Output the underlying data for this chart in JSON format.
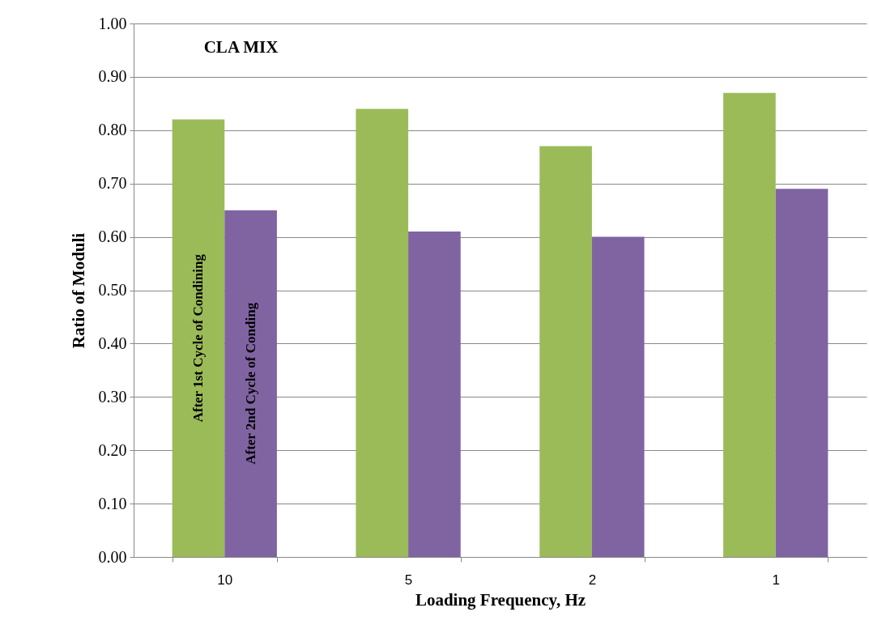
{
  "chart_data": {
    "type": "bar",
    "title": "CLA MIX",
    "xlabel": "Loading Frequency, Hz",
    "ylabel": "Ratio of Moduli",
    "categories": [
      "10",
      "5",
      "2",
      "1"
    ],
    "series": [
      {
        "name": "After 1st Cycle of Condining",
        "color": "#9bbb59",
        "values": [
          0.82,
          0.84,
          0.77,
          0.87
        ]
      },
      {
        "name": "After  2nd  Cycle of Conding",
        "color": "#8064a2",
        "values": [
          0.65,
          0.61,
          0.6,
          0.69
        ]
      }
    ],
    "ylim": [
      0,
      1
    ],
    "yticks": [
      {
        "value": 0,
        "label": "0.00"
      },
      {
        "value": 0.1,
        "label": "0.10"
      },
      {
        "value": 0.2,
        "label": "0.20"
      },
      {
        "value": 0.3,
        "label": "0.30"
      },
      {
        "value": 0.4,
        "label": "0.40"
      },
      {
        "value": 0.5,
        "label": "0.50"
      },
      {
        "value": 0.6,
        "label": "0.60"
      },
      {
        "value": 0.7,
        "label": "0.70"
      },
      {
        "value": 0.8,
        "label": "0.80"
      },
      {
        "value": 0.9,
        "label": "0.90"
      },
      {
        "value": 1,
        "label": "1.00"
      }
    ],
    "grid": "y",
    "legend": false
  }
}
